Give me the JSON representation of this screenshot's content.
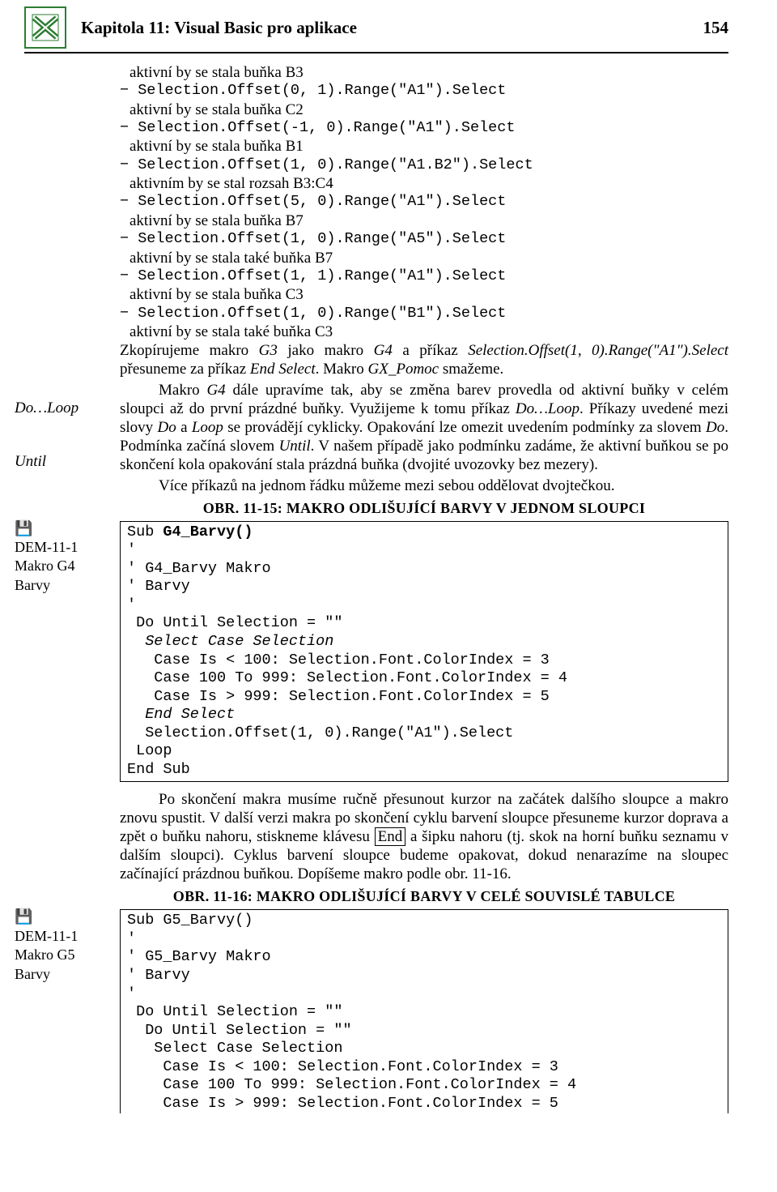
{
  "header": {
    "title": "Kapitola 11: Visual Basic pro aplikace",
    "page": "154"
  },
  "margin": {
    "note1": "Do…Loop",
    "note2": "Until",
    "ref1_disk": "💾",
    "ref1_l1": "DEM-11-1",
    "ref1_l2": "Makro G4",
    "ref1_l3": "Barvy",
    "ref2_disk": "💾",
    "ref2_l1": "DEM-11-1",
    "ref2_l2": "Makro G5",
    "ref2_l3": "Barvy"
  },
  "top_lines": [
    {
      "type": "text",
      "val": "aktivní by se stala buňka B3"
    },
    {
      "type": "code",
      "val": "− Selection.Offset(0, 1).Range(\"A1\").Select"
    },
    {
      "type": "text",
      "val": "aktivní by se stala buňka C2"
    },
    {
      "type": "code",
      "val": "− Selection.Offset(-1, 0).Range(\"A1\").Select"
    },
    {
      "type": "text",
      "val": "aktivní by se stala buňka B1"
    },
    {
      "type": "code",
      "val": "− Selection.Offset(1, 0).Range(\"A1.B2\").Select"
    },
    {
      "type": "text",
      "val": "aktivním by se stal rozsah B3:C4"
    },
    {
      "type": "code",
      "val": "− Selection.Offset(5, 0).Range(\"A1\").Select"
    },
    {
      "type": "text",
      "val": "aktivní by se stala buňka B7"
    },
    {
      "type": "code",
      "val": "− Selection.Offset(1, 0).Range(\"A5\").Select"
    },
    {
      "type": "text",
      "val": "aktivní by se stala také buňka B7"
    },
    {
      "type": "code",
      "val": "− Selection.Offset(1, 1).Range(\"A1\").Select"
    },
    {
      "type": "text",
      "val": "aktivní by se stala buňka C3"
    },
    {
      "type": "code",
      "val": "− Selection.Offset(1, 0).Range(\"B1\").Select"
    },
    {
      "type": "text",
      "val": "aktivní by se stala také buňka C3"
    }
  ],
  "para1_a": "Zkopírujeme makro ",
  "para1_i1": "G3",
  "para1_b": " jako makro ",
  "para1_i2": "G4",
  "para1_c": " a příkaz ",
  "para1_i3": "Selection.Offset(1, 0).Range(\"A1\").Select",
  "para1_d": " přesuneme za příkaz ",
  "para1_i4": "End Select",
  "para1_e": ". Makro ",
  "para1_i5": "GX_Pomoc",
  "para1_f": " smažeme.",
  "para2_a": "Makro ",
  "para2_i1": "G4",
  "para2_b": " dále upravíme tak, aby se změna barev provedla od aktivní buňky v celém sloupci až do první prázdné buňky. Využijeme k tomu příkaz ",
  "para2_i2": "Do…Loop",
  "para2_c": ". Příkazy uvedené mezi slovy ",
  "para2_i3": "Do",
  "para2_d": " a ",
  "para2_i4": "Loop",
  "para2_e": " se provádějí cyklicky. Opakování lze omezit uvedením podmínky za slovem ",
  "para2_i5": "Do",
  "para2_f": ". Podmínka začíná slovem ",
  "para2_i6": "Until",
  "para2_g": ". V našem případě jako podmínku zadáme, že aktivní buňkou se po skončení kola opakování stala prázdná buňka (dvojité uvozovky bez mezery).",
  "para3": "Více příkazů na jednom řádku můžeme mezi sebou oddělovat dvojtečkou.",
  "fig1": "OBR. 11-15: MAKRO ODLIŠUJÍCÍ BARVY V JEDNOM SLOUPCI",
  "code1": "Sub G4_Barvy()\n'\n' G4_Barvy Makro\n' Barvy\n'\n Do Until Selection = \"\"\n  Select Case Selection\n   Case Is < 100: Selection.Font.ColorIndex = 3\n   Case 100 To 999: Selection.Font.ColorIndex = 4\n   Case Is > 999: Selection.Font.ColorIndex = 5\n  End Select\n  Selection.Offset(1, 0).Range(\"A1\").Select\n Loop\nEnd Sub",
  "para4_a": "Po skončení makra musíme ručně přesunout kurzor na začátek dalšího sloupce a makro znovu spustit. V další verzi makra po skončení cyklu barvení sloupce přesuneme kurzor doprava a zpět o buňku nahoru, stiskneme klávesu ",
  "para4_key": "End",
  "para4_b": " a šipku nahoru (tj. skok na horní buňku seznamu v dalším sloupci). Cyklus barvení sloupce budeme opakovat, dokud nenarazíme na sloupec začínající prázdnou buňkou. Dopíšeme makro podle obr. 11-16.",
  "fig2": "OBR. 11-16: MAKRO ODLIŠUJÍCÍ BARVY V CELÉ SOUVISLÉ TABULCE",
  "code2": "Sub G5_Barvy()\n'\n' G5_Barvy Makro\n' Barvy\n'\n Do Until Selection = \"\"\n  Do Until Selection = \"\"\n   Select Case Selection\n    Case Is < 100: Selection.Font.ColorIndex = 3\n    Case 100 To 999: Selection.Font.ColorIndex = 4\n    Case Is > 999: Selection.Font.ColorIndex = 5"
}
